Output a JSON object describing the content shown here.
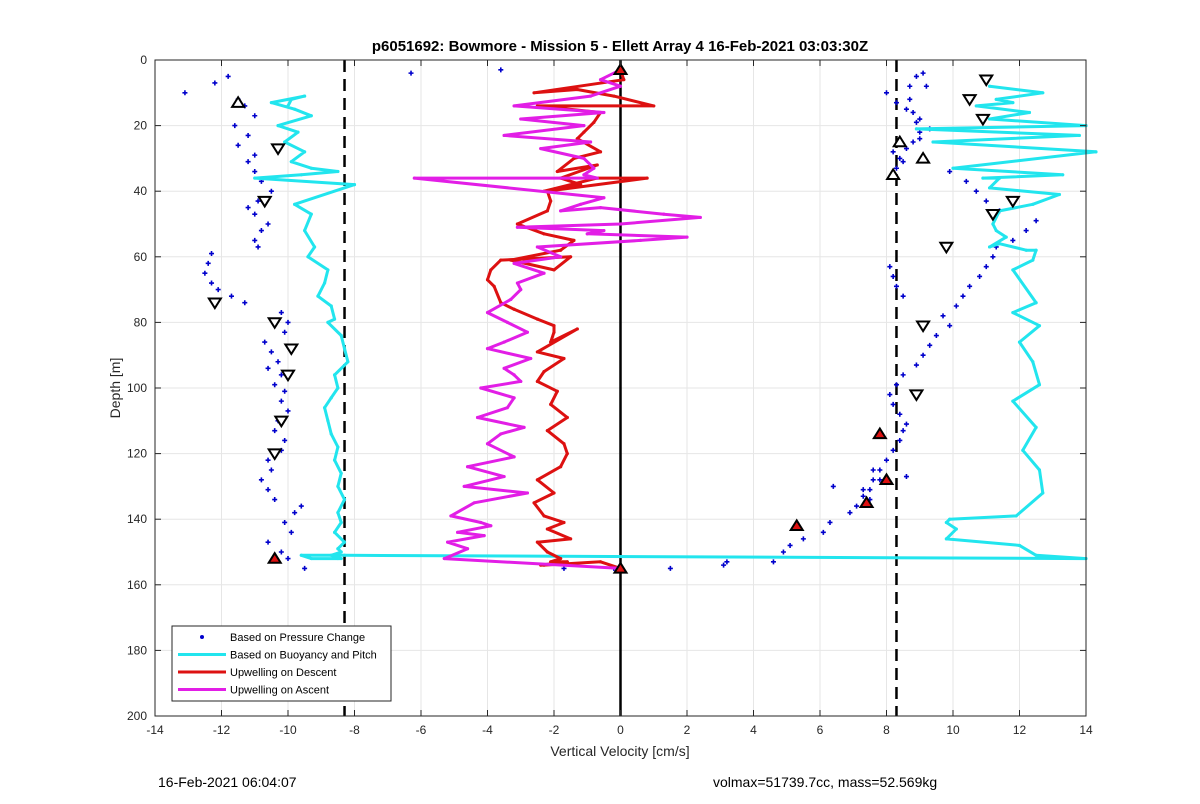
{
  "chart_data": {
    "type": "line",
    "title": "p6051692: Bowmore - Mission 5 - Ellett Array 4 16-Feb-2021 03:03:30Z",
    "xlabel": "Vertical Velocity [cm/s]",
    "ylabel": "Depth [m]",
    "xlim": [
      -14,
      14
    ],
    "ylim": [
      0,
      200
    ],
    "y_reversed": true,
    "xticks": [
      -14,
      -12,
      -10,
      -8,
      -6,
      -4,
      -2,
      0,
      2,
      4,
      6,
      8,
      10,
      12,
      14
    ],
    "yticks": [
      0,
      20,
      40,
      60,
      80,
      100,
      120,
      140,
      160,
      180,
      200
    ],
    "grid": true,
    "legend_position": "bottom-left",
    "reference_lines": {
      "dashed_x": [
        -8.3,
        8.3
      ],
      "solid_x": 0
    },
    "series": [
      {
        "name": "Based on Pressure Change",
        "style": "points",
        "color": "#0000cc",
        "x": [
          -13.1,
          -12.2,
          -11.8,
          -11.5,
          -11.3,
          -11.0,
          -11.6,
          -11.2,
          -11.5,
          -11.0,
          -11.2,
          -11.0,
          -10.8,
          -10.5,
          -10.9,
          -11.2,
          -11.0,
          -10.6,
          -10.8,
          -11.0,
          -10.9,
          -12.3,
          -12.4,
          -12.5,
          -12.3,
          -12.1,
          -11.7,
          -11.3,
          -10.2,
          -10.0,
          -10.1,
          -10.7,
          -10.5,
          -10.3,
          -10.6,
          -10.2,
          -10.4,
          -10.1,
          -10.2,
          -10.0,
          -10.3,
          -10.4,
          -10.1,
          -10.2,
          -10.6,
          -10.5,
          -10.8,
          -10.6,
          -10.4,
          -9.6,
          -9.8,
          -10.1,
          -9.9,
          -10.6,
          -10.2,
          -10.0,
          -9.5,
          -6.3,
          -3.6,
          -1.7,
          -0.2,
          1.5,
          3.1,
          3.2,
          4.6,
          4.9,
          5.1,
          5.5,
          6.1,
          6.3,
          6.9,
          7.1,
          7.3,
          7.5,
          7.6,
          7.8,
          8.0,
          8.2,
          8.4,
          8.5,
          8.6,
          8.4,
          8.2,
          8.1,
          8.3,
          8.5,
          8.9,
          9.1,
          9.3,
          9.5,
          9.9,
          9.7,
          10.1,
          10.3,
          10.5,
          10.8,
          11.0,
          11.2,
          11.3,
          11.8,
          12.2,
          12.5,
          11.4,
          11.0,
          10.7,
          10.4,
          9.9,
          8.5,
          8.2,
          8.8,
          9.0,
          8.9,
          8.8,
          8.3,
          8.0,
          8.7,
          8.9,
          9.1,
          9.2,
          8.7,
          8.6,
          9.0,
          9.3,
          9.0,
          8.6,
          8.4,
          8.3,
          8.1,
          8.2,
          8.3,
          8.5,
          7.6,
          7.8,
          7.3,
          7.5,
          8.6,
          6.4
        ],
        "y": [
          10,
          7,
          5,
          12,
          14,
          17,
          20,
          23,
          26,
          29,
          31,
          34,
          37,
          40,
          43,
          45,
          47,
          50,
          52,
          55,
          57,
          59,
          62,
          65,
          68,
          70,
          72,
          74,
          77,
          80,
          83,
          86,
          89,
          92,
          94,
          96,
          99,
          101,
          104,
          107,
          110,
          113,
          116,
          119,
          122,
          125,
          128,
          131,
          134,
          136,
          138,
          141,
          144,
          147,
          150,
          152,
          155,
          4,
          3,
          155,
          155,
          155,
          154,
          153,
          153,
          150,
          148,
          146,
          144,
          141,
          138,
          136,
          133,
          131,
          128,
          125,
          122,
          119,
          116,
          113,
          111,
          108,
          105,
          102,
          99,
          96,
          93,
          90,
          87,
          84,
          81,
          78,
          75,
          72,
          69,
          66,
          63,
          60,
          57,
          55,
          52,
          49,
          46,
          43,
          40,
          37,
          34,
          31,
          28,
          25,
          22,
          19,
          16,
          13,
          10,
          8,
          5,
          4,
          8,
          12,
          15,
          18,
          21,
          24,
          27,
          30,
          33,
          63,
          66,
          69,
          72,
          125,
          128,
          131,
          134,
          127,
          130
        ]
      },
      {
        "name": "Based on Buoyancy and Pitch",
        "style": "line",
        "color": "#22e5ee",
        "x": [
          -10.0,
          -9.9,
          -9.5,
          -10.5,
          -9.8,
          -9.3,
          -10.3,
          -9.7,
          -10.1,
          -9.5,
          -9.9,
          -9.3,
          -8.5,
          -9.6,
          -11.0,
          -8.0,
          -9.8,
          -9.3,
          -9.5,
          -9.2,
          -9.4,
          -8.8,
          -8.9,
          -9.1,
          -8.7,
          -8.6,
          -8.8,
          -8.4,
          -8.3,
          -8.2,
          -8.6,
          -8.5,
          -8.7,
          -8.9,
          -8.8,
          -8.7,
          -8.5,
          -8.6,
          -8.4,
          -8.5,
          -8.3,
          -8.5,
          -8.4,
          -8.6,
          -8.3,
          -8.5,
          -8.4,
          -8.7,
          -8.4,
          -8.5,
          -9.3,
          -9.6,
          -8.3,
          14.0,
          12.5,
          12.0,
          9.8,
          10.1,
          9.8,
          9.9,
          11.9,
          12.7,
          12.6,
          12.1,
          12.5,
          11.8,
          12.6,
          12.4,
          12.0,
          12.6,
          11.8,
          12.5,
          11.8,
          12.4,
          12.5,
          12.2,
          11.4,
          11.1,
          11.6,
          11.3,
          11.2,
          11.4,
          12.4,
          13.2,
          11.1,
          11.4,
          10.9,
          13.3,
          10.0,
          14.3,
          9.4,
          13.8,
          8.9,
          14.0,
          11.1,
          12.3,
          10.7,
          11.8,
          11.3,
          12.7,
          11.1
        ],
        "y": [
          14,
          12,
          11,
          13,
          15,
          17,
          20,
          22,
          25,
          28,
          31,
          33,
          34,
          35,
          36,
          38,
          44,
          47,
          52,
          57,
          60,
          64,
          68,
          72,
          75,
          79,
          80,
          84,
          88,
          92,
          96,
          100,
          103,
          106,
          110,
          114,
          118,
          122,
          126,
          130,
          134,
          138,
          141,
          144,
          147,
          149,
          150,
          151,
          152,
          152,
          152,
          151,
          151,
          152,
          151,
          148,
          146,
          143,
          141,
          140,
          139,
          132,
          125,
          119,
          112,
          104,
          99,
          92,
          86,
          81,
          77,
          74,
          64,
          61,
          58,
          58,
          56,
          57,
          54,
          52,
          50,
          46,
          44,
          41,
          39,
          36,
          36,
          35,
          33,
          28,
          25,
          23,
          21,
          20,
          18,
          16,
          14,
          13,
          12,
          10,
          8
        ]
      },
      {
        "name": "Upwelling on Descent",
        "style": "line",
        "color": "#dd1111",
        "x": [
          0.0,
          0.1,
          -2.6,
          -1.3,
          -0.2,
          1.0,
          -2.5,
          -0.6,
          -0.8,
          -1.1,
          -1.3,
          -0.6,
          -1.4,
          -1.9,
          -0.7,
          -1.8,
          -1.2,
          -2.3,
          -0.7,
          0.8,
          -2.2,
          -2.1,
          -2.2,
          -3.1,
          -2.3,
          -1.4,
          -1.8,
          -3.3,
          -2.0,
          -1.5,
          -3.6,
          -3.9,
          -4.0,
          -3.8,
          -3.6,
          -3.2,
          -2.5,
          -2.0,
          -2.0,
          -2.1,
          -1.3,
          -2.5,
          -1.7,
          -2.3,
          -2.5,
          -1.9,
          -2.1,
          -1.6,
          -2.2,
          -1.7,
          -1.6,
          -1.8,
          -2.5,
          -2.0,
          -2.6,
          -2.3,
          -1.7,
          -2.2,
          -1.5,
          -2.5,
          -2.2,
          -1.8,
          -2.1,
          -1.6,
          -2.4,
          -2.3,
          -0.6,
          0.0
        ],
        "y": [
          3,
          6,
          10,
          9,
          11,
          14,
          14,
          16,
          19,
          22,
          24,
          28,
          30,
          34,
          32,
          36,
          38,
          40,
          36,
          36,
          40,
          43,
          46,
          50,
          53,
          55,
          58,
          61,
          64,
          60,
          61,
          64,
          67,
          69,
          74,
          76,
          79,
          81,
          83,
          86,
          82,
          89,
          91,
          95,
          98,
          101,
          105,
          109,
          113,
          117,
          120,
          124,
          128,
          132,
          135,
          139,
          141,
          143,
          146,
          147,
          150,
          152,
          153,
          153,
          154,
          154,
          153,
          155
        ]
      },
      {
        "name": "Upwelling on Ascent",
        "style": "line",
        "color": "#e21ee6",
        "x": [
          0.0,
          -0.6,
          0.0,
          -0.9,
          -3.2,
          -0.5,
          -3.0,
          -1.1,
          -3.5,
          -0.9,
          -2.4,
          -1.1,
          -0.8,
          -1.1,
          -0.7,
          -6.2,
          -0.5,
          -1.2,
          -1.8,
          -0.6,
          1.3,
          2.4,
          0.0,
          -3.1,
          -0.5,
          -1.0,
          2.0,
          0.6,
          -2.5,
          -1.8,
          -3.2,
          -2.3,
          -3.1,
          -3.0,
          -3.3,
          -4.0,
          -3.4,
          -2.8,
          -3.5,
          -4.0,
          -2.7,
          -3.5,
          -3.2,
          -3.0,
          -4.2,
          -3.2,
          -3.4,
          -4.3,
          -2.9,
          -3.6,
          -4.0,
          -3.2,
          -4.6,
          -3.5,
          -4.7,
          -2.8,
          -4.4,
          -5.1,
          -4.2,
          -3.9,
          -4.9,
          -4.1,
          -5.2,
          -4.6,
          -5.3,
          0.0
        ],
        "y": [
          3,
          6,
          8,
          11,
          14,
          16,
          18,
          20,
          23,
          25,
          27,
          30,
          33,
          35,
          36,
          36,
          42,
          44,
          46,
          45,
          47,
          48,
          50,
          51,
          52,
          53,
          54,
          55,
          57,
          60,
          62,
          65,
          68,
          70,
          73,
          77,
          80,
          83,
          86,
          88,
          91,
          94,
          96,
          98,
          100,
          103,
          106,
          109,
          112,
          114,
          117,
          121,
          124,
          127,
          130,
          132,
          135,
          139,
          141,
          142,
          144,
          145,
          147,
          149,
          152,
          155
        ]
      }
    ],
    "markers": {
      "triangle_down_open": {
        "x": [
          11.0,
          10.5,
          10.9,
          9.8,
          11.8,
          11.2,
          9.1,
          8.9,
          -10.4,
          -9.9,
          -10.0,
          -10.2,
          -12.2,
          -10.7,
          -10.3,
          -10.4
        ],
        "y": [
          6,
          12,
          18,
          57,
          43,
          47,
          81,
          102,
          80,
          88,
          96,
          110,
          74,
          43,
          27,
          120
        ]
      },
      "triangle_up_open": {
        "x": [
          -11.5,
          8.4,
          9.1,
          8.2
        ],
        "y": [
          13,
          25,
          30,
          35
        ]
      },
      "triangle_filled": {
        "x": [
          0.0,
          7.8,
          8.0,
          7.4,
          5.3,
          0.0,
          -10.4
        ],
        "y": [
          3,
          114,
          128,
          135,
          142,
          155,
          152
        ]
      }
    },
    "footer_left": "16-Feb-2021 06:04:07",
    "footer_right": "volmax=51739.7cc, mass=52.569kg"
  }
}
